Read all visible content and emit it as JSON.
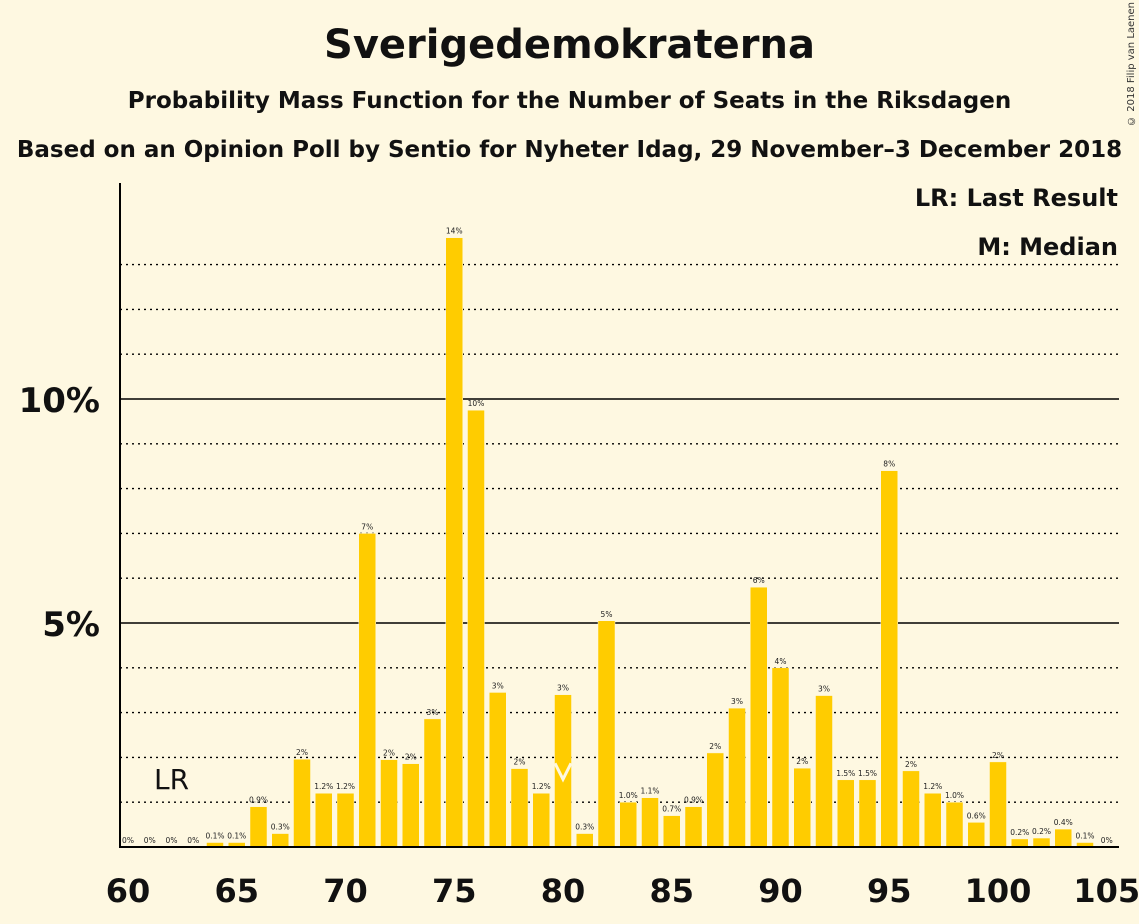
{
  "title": "Sverigedemokraterna",
  "subtitle": "Probability Mass Function for the Number of Seats in the Riksdagen",
  "subtitle2": "Based on an Opinion Poll by Sentio for Nyheter Idag, 29 November–3 December 2018",
  "copyright": "© 2018 Filip van Laenen",
  "legend": {
    "lr": "LR: Last Result",
    "m": "M: Median"
  },
  "colors": {
    "bar": "#FFCC00",
    "background": "#FEF8E1",
    "axis": "#000000"
  },
  "chart_data": {
    "type": "bar",
    "x": [
      60,
      61,
      62,
      63,
      64,
      65,
      66,
      67,
      68,
      69,
      70,
      71,
      72,
      73,
      74,
      75,
      76,
      77,
      78,
      79,
      80,
      81,
      82,
      83,
      84,
      85,
      86,
      87,
      88,
      89,
      90,
      91,
      92,
      93,
      94,
      95,
      96,
      97,
      98,
      99,
      100,
      101,
      102,
      103,
      104
    ],
    "values": [
      0,
      0,
      0,
      0,
      0.1,
      0.1,
      0.9,
      0.3,
      1.96,
      1.2,
      1.2,
      7.0,
      1.95,
      1.86,
      2.86,
      13.6,
      9.75,
      3.45,
      1.75,
      1.2,
      3.4,
      0.3,
      5.05,
      1.0,
      1.1,
      0.7,
      0.9,
      2.1,
      3.1,
      5.8,
      4.0,
      1.76,
      3.38,
      1.5,
      1.5,
      8.4,
      1.7,
      1.2,
      1.0,
      0.55,
      1.9,
      0.18,
      0.2,
      0.4,
      0.1
    ],
    "labels": [
      "0%",
      "0%",
      "0%",
      "0%",
      "0.1%",
      "0.1%",
      "0.9%",
      "0.3%",
      "2%",
      "1.2%",
      "1.2%",
      "7%",
      "2%",
      "2%",
      "3%",
      "14%",
      "10%",
      "3%",
      "2%",
      "1.2%",
      "3%",
      "0.3%",
      "5%",
      "1.0%",
      "1.1%",
      "0.7%",
      "0.9%",
      "2%",
      "3%",
      "6%",
      "4%",
      "2%",
      "3%",
      "1.5%",
      "1.5%",
      "8%",
      "2%",
      "1.2%",
      "1.0%",
      "0.6%",
      "2%",
      "0.2%",
      "0.2%",
      "0.4%",
      "0.1%"
    ],
    "x_last": 105,
    "last_label": "0%",
    "xticks": [
      60,
      65,
      70,
      75,
      80,
      85,
      90,
      95,
      100,
      105
    ],
    "yticks": [
      5,
      10
    ],
    "ytick_labels": [
      "5%",
      "10%"
    ],
    "ylim": [
      0,
      14.8
    ],
    "last_result": 62,
    "last_result_label": "LR",
    "median": 80
  }
}
